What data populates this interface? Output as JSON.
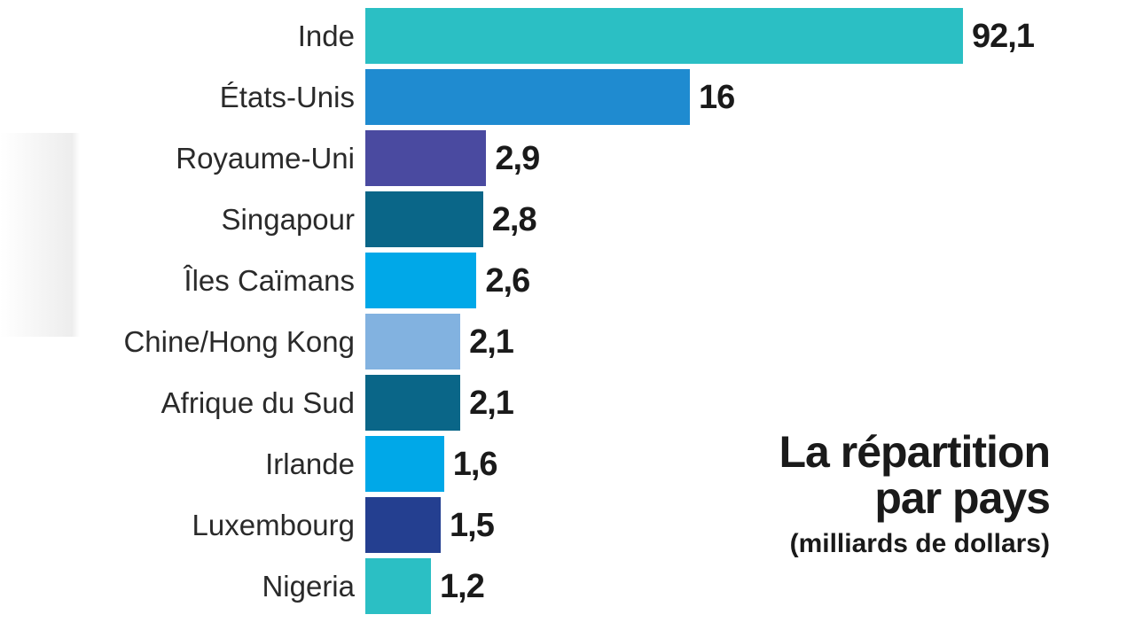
{
  "chart_data": {
    "type": "bar",
    "orientation": "horizontal",
    "title": "La répartition par pays",
    "title_lines": [
      "La répartition",
      "par pays"
    ],
    "subtitle": "(milliards de dollars)",
    "categories": [
      "Inde",
      "États-Unis",
      "Royaume-Uni",
      "Singapour",
      "Îles Caïmans",
      "Chine/Hong Kong",
      "Afrique du Sud",
      "Irlande",
      "Luxembourg",
      "Nigeria"
    ],
    "values": [
      92.1,
      16,
      2.9,
      2.8,
      2.6,
      2.1,
      2.1,
      1.6,
      1.5,
      1.2
    ],
    "value_labels": [
      "92,1",
      "16",
      "2,9",
      "2,8",
      "2,6",
      "2,1",
      "2,1",
      "1,6",
      "1,5",
      "1,2"
    ],
    "colors": [
      "#2bbfc4",
      "#1f8bd0",
      "#4a4aa0",
      "#0a6688",
      "#00a8e8",
      "#82b2e0",
      "#0a6688",
      "#00a8e8",
      "#243f90",
      "#2bbfc4"
    ],
    "scale_break": true,
    "grid": false,
    "legend": "none"
  }
}
